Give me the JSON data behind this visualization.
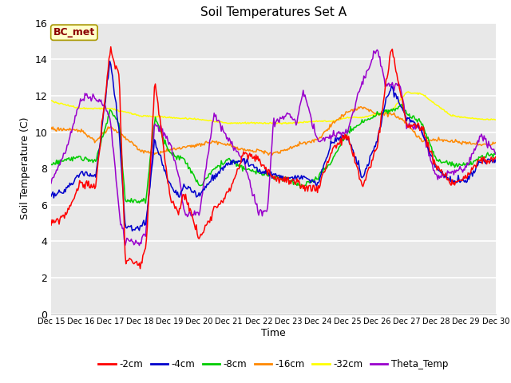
{
  "title": "Soil Temperatures Set A",
  "xlabel": "Time",
  "ylabel": "Soil Temperature (C)",
  "ylim": [
    0,
    16
  ],
  "yticks": [
    0,
    2,
    4,
    6,
    8,
    10,
    12,
    14,
    16
  ],
  "annotation_text": "BC_met",
  "annotation_color": "#8B0000",
  "annotation_bg": "#FFFFCC",
  "series_colors": {
    "-2cm": "#FF0000",
    "-4cm": "#0000CC",
    "-8cm": "#00CC00",
    "-16cm": "#FF8800",
    "-32cm": "#FFFF00",
    "Theta_Temp": "#9900CC"
  },
  "bg_color": "#E8E8E8",
  "fig_bg_color": "#FFFFFF",
  "grid_color": "#FFFFFF",
  "n_points": 500,
  "xstart": 15,
  "xend": 30
}
